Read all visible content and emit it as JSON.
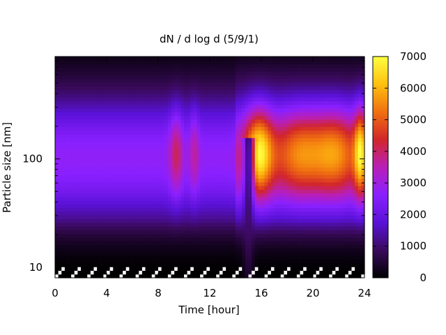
{
  "chart_data": {
    "type": "heatmap",
    "title": "dN / d log d (5/9/1)",
    "xlabel": "Time [hour]",
    "ylabel": "Particle size [nm]",
    "xlim": [
      0,
      24
    ],
    "ylim": [
      8,
      880
    ],
    "y_scale": "log",
    "x_ticks": [
      0,
      4,
      8,
      12,
      16,
      20,
      24
    ],
    "y_ticks": [
      10,
      100
    ],
    "colorbar": {
      "range": [
        0,
        7000
      ],
      "ticks": [
        0,
        1000,
        2000,
        3000,
        4000,
        5000,
        6000,
        7000
      ],
      "colormap": [
        "#000000",
        "#3a0a5c",
        "#5a12d8",
        "#8a20ff",
        "#b81fb8",
        "#d2262a",
        "#f07010",
        "#ffc010",
        "#ffff40"
      ]
    },
    "mode_diameter_nm": 115,
    "events": [
      {
        "center_hour": 9.4,
        "width_hour": 0.35,
        "peak_value": 4200
      },
      {
        "center_hour": 10.8,
        "width_hour": 0.25,
        "peak_value": 3800
      },
      {
        "center_hour": 15.8,
        "width_hour": 0.75,
        "peak_value": 6300
      },
      {
        "center_hour": 19.0,
        "width_hour": 1.4,
        "peak_value": 4900
      },
      {
        "center_hour": 21.8,
        "width_hour": 1.2,
        "peak_value": 4900
      },
      {
        "center_hour": 23.7,
        "width_hour": 0.35,
        "peak_value": 5900
      }
    ],
    "dip_event": {
      "center_hour": 15.0,
      "peak_value": 600
    }
  }
}
